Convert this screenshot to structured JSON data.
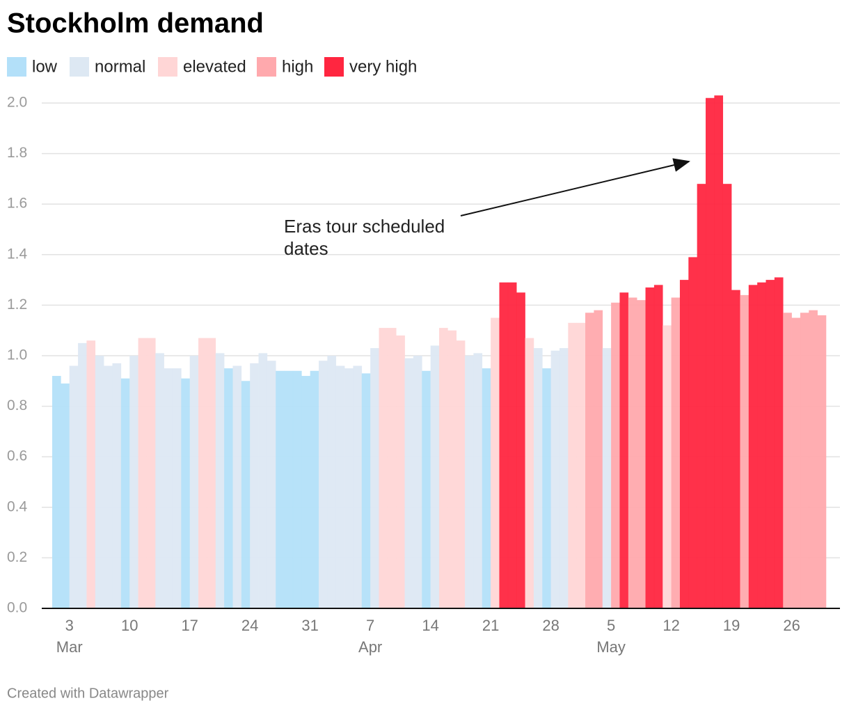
{
  "chart_data": {
    "type": "bar",
    "title": "Stockholm demand",
    "footer": "Created with Datawrapper",
    "annotation": [
      "Eras tour scheduled",
      "dates"
    ],
    "series": [
      {
        "name": "low",
        "color": "#b3e0f9"
      },
      {
        "name": "normal",
        "color": "#dde8f3"
      },
      {
        "name": "elevated",
        "color": "#ffd6d6"
      },
      {
        "name": "high",
        "color": "#ffa9ad"
      },
      {
        "name": "very high",
        "color": "#ff2640"
      }
    ],
    "x": [
      "03-01",
      "03-02",
      "03-03",
      "03-04",
      "03-05",
      "03-06",
      "03-07",
      "03-08",
      "03-09",
      "03-10",
      "03-11",
      "03-12",
      "03-13",
      "03-14",
      "03-15",
      "03-16",
      "03-17",
      "03-18",
      "03-19",
      "03-20",
      "03-21",
      "03-22",
      "03-23",
      "03-24",
      "03-25",
      "03-26",
      "03-27",
      "03-28",
      "03-29",
      "03-30",
      "03-31",
      "04-01",
      "04-02",
      "04-03",
      "04-04",
      "04-05",
      "04-06",
      "04-07",
      "04-08",
      "04-09",
      "04-10",
      "04-11",
      "04-12",
      "04-13",
      "04-14",
      "04-15",
      "04-16",
      "04-17",
      "04-18",
      "04-19",
      "04-20",
      "04-21",
      "04-22",
      "04-23",
      "04-24",
      "04-25",
      "04-26",
      "04-27",
      "04-28",
      "04-29",
      "04-30",
      "05-01",
      "05-02",
      "05-03",
      "05-04",
      "05-05",
      "05-06",
      "05-07",
      "05-08",
      "05-09",
      "05-10",
      "05-11",
      "05-12",
      "05-13",
      "05-14",
      "05-15",
      "05-16",
      "05-17",
      "05-18",
      "05-19",
      "05-20",
      "05-21",
      "05-22",
      "05-23",
      "05-24",
      "05-25",
      "05-26",
      "05-27",
      "05-28",
      "05-29"
    ],
    "values": [
      0.92,
      0.89,
      0.96,
      1.05,
      1.06,
      1.0,
      0.96,
      0.97,
      0.91,
      1.0,
      1.07,
      1.07,
      1.01,
      0.95,
      0.95,
      0.91,
      1.0,
      1.07,
      1.07,
      1.01,
      0.95,
      0.96,
      0.9,
      0.97,
      1.01,
      0.98,
      0.94,
      0.94,
      0.94,
      0.92,
      0.94,
      0.98,
      1.0,
      0.96,
      0.95,
      0.96,
      0.93,
      1.03,
      1.11,
      1.11,
      1.08,
      0.99,
      1.0,
      0.94,
      1.04,
      1.11,
      1.1,
      1.06,
      1.0,
      1.01,
      0.95,
      1.15,
      1.29,
      1.29,
      1.25,
      1.07,
      1.03,
      0.95,
      1.02,
      1.03,
      1.13,
      1.13,
      1.17,
      1.18,
      1.03,
      1.21,
      1.25,
      1.23,
      1.22,
      1.27,
      1.28,
      1.12,
      1.23,
      1.3,
      1.39,
      1.68,
      2.02,
      2.03,
      1.68,
      1.26,
      1.24,
      1.28,
      1.29,
      1.3,
      1.31,
      1.17,
      1.15,
      1.17,
      1.18,
      1.16
    ],
    "levels": [
      "low",
      "low",
      "normal",
      "normal",
      "elevated",
      "normal",
      "normal",
      "normal",
      "low",
      "normal",
      "elevated",
      "elevated",
      "normal",
      "normal",
      "normal",
      "low",
      "normal",
      "elevated",
      "elevated",
      "normal",
      "low",
      "normal",
      "low",
      "normal",
      "normal",
      "normal",
      "low",
      "low",
      "low",
      "low",
      "low",
      "normal",
      "normal",
      "normal",
      "normal",
      "normal",
      "low",
      "normal",
      "elevated",
      "elevated",
      "elevated",
      "normal",
      "normal",
      "low",
      "normal",
      "elevated",
      "elevated",
      "elevated",
      "normal",
      "normal",
      "low",
      "elevated",
      "very high",
      "very high",
      "very high",
      "elevated",
      "normal",
      "low",
      "normal",
      "normal",
      "elevated",
      "elevated",
      "high",
      "high",
      "normal",
      "high",
      "very high",
      "high",
      "high",
      "very high",
      "very high",
      "elevated",
      "high",
      "very high",
      "very high",
      "very high",
      "very high",
      "very high",
      "very high",
      "very high",
      "high",
      "very high",
      "very high",
      "very high",
      "very high",
      "high",
      "high",
      "high",
      "high",
      "high"
    ],
    "ylim": [
      0,
      2.0
    ],
    "yticks": [
      {
        "value": 0,
        "label": "0.0"
      },
      {
        "value": 0.2,
        "label": "0.2"
      },
      {
        "value": 0.4,
        "label": "0.4"
      },
      {
        "value": 0.6,
        "label": "0.6"
      },
      {
        "value": 0.8,
        "label": "0.8"
      },
      {
        "value": 1.0,
        "label": "1.0"
      },
      {
        "value": 1.2,
        "label": "1.2"
      },
      {
        "value": 1.4,
        "label": "1.4"
      },
      {
        "value": 1.6,
        "label": "1.6"
      },
      {
        "value": 1.8,
        "label": "1.8"
      },
      {
        "value": 2.0,
        "label": "2.0"
      }
    ],
    "xticks": [
      {
        "value": "03-03",
        "label": "3"
      },
      {
        "value": "03-10",
        "label": "10"
      },
      {
        "value": "03-17",
        "label": "17"
      },
      {
        "value": "03-24",
        "label": "24"
      },
      {
        "value": "03-31",
        "label": "31"
      },
      {
        "value": "04-07",
        "label": "7"
      },
      {
        "value": "04-14",
        "label": "14"
      },
      {
        "value": "04-21",
        "label": "21"
      },
      {
        "value": "04-28",
        "label": "28"
      },
      {
        "value": "05-05",
        "label": "5"
      },
      {
        "value": "05-12",
        "label": "12"
      },
      {
        "value": "05-19",
        "label": "19"
      },
      {
        "value": "05-26",
        "label": "26"
      }
    ],
    "xticks_months": [
      {
        "value": "03-03",
        "label": "Mar"
      },
      {
        "value": "04-07",
        "label": "Apr"
      },
      {
        "value": "05-05",
        "label": "May"
      }
    ],
    "grid": true
  }
}
